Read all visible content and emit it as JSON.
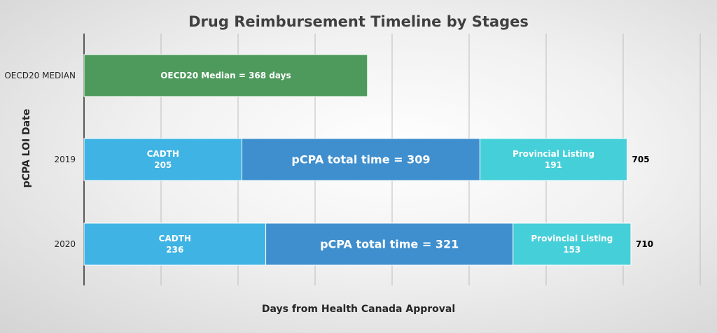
{
  "chart_data": {
    "type": "bar",
    "orientation": "horizontal",
    "stacked": true,
    "title": "Drug Reimbursement Timeline by Stages",
    "xlabel": "Days from Health Canada Approval",
    "ylabel": "pCPA LOI Date",
    "xlim": [
      0,
      800
    ],
    "x_gridline_step": 100,
    "grid": "vertical",
    "categories": [
      "OECD20 MEDIAN",
      "2019",
      "2020"
    ],
    "bars": [
      {
        "category": "OECD20 MEDIAN",
        "total": 368,
        "total_label": "",
        "segments": [
          {
            "value": 368,
            "label": "OECD20 Median = 368 days",
            "color": "#4e9a5c"
          }
        ]
      },
      {
        "category": "2019",
        "total": 705,
        "total_label": "705",
        "segments": [
          {
            "value": 205,
            "label": "CADTH\n205",
            "color": "#3eb3e4"
          },
          {
            "value": 309,
            "label": "pCPA total time = 309",
            "color": "#3f8fce"
          },
          {
            "value": 191,
            "label": "Provincial Listing\n191",
            "color": "#45cfd9"
          }
        ]
      },
      {
        "category": "2020",
        "total": 710,
        "total_label": "710",
        "segments": [
          {
            "value": 236,
            "label": "CADTH\n236",
            "color": "#3eb3e4"
          },
          {
            "value": 321,
            "label": "pCPA total time = 321",
            "color": "#3f8fce"
          },
          {
            "value": 153,
            "label": "Provincial Listing\n153",
            "color": "#45cfd9"
          }
        ]
      }
    ]
  }
}
